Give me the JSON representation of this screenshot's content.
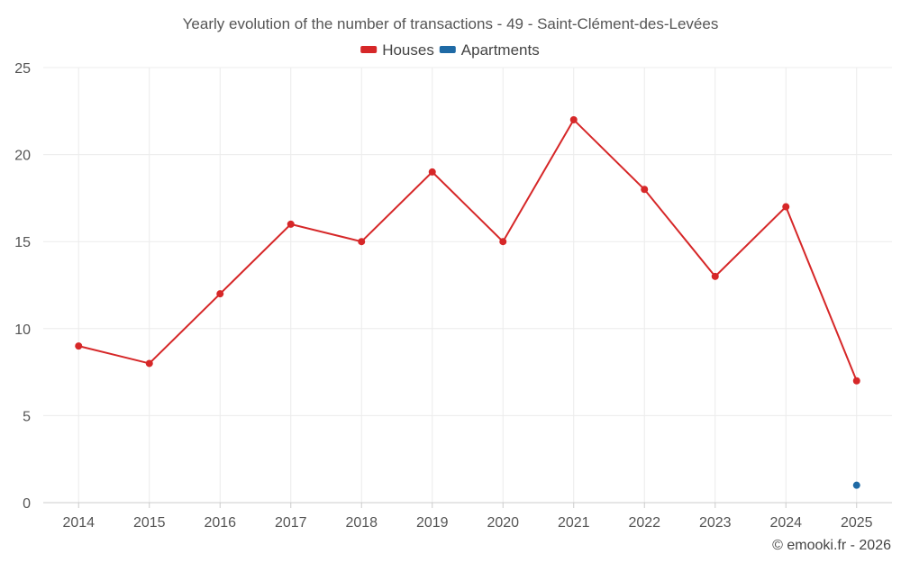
{
  "chart_data": {
    "type": "line",
    "title": "Yearly evolution of the number of transactions - 49 - Saint-Clément-des-Levées",
    "categories": [
      "2014",
      "2015",
      "2016",
      "2017",
      "2018",
      "2019",
      "2020",
      "2021",
      "2022",
      "2023",
      "2024",
      "2025"
    ],
    "series": [
      {
        "name": "Houses",
        "color": "#d62728",
        "values": [
          9,
          8,
          12,
          16,
          15,
          19,
          15,
          22,
          18,
          13,
          17,
          7
        ]
      },
      {
        "name": "Apartments",
        "color": "#1f6aa5",
        "values": [
          null,
          null,
          null,
          null,
          null,
          null,
          null,
          null,
          null,
          null,
          null,
          1
        ]
      }
    ],
    "ylim": [
      0,
      25
    ],
    "yticks": [
      0,
      5,
      10,
      15,
      20,
      25
    ],
    "xlabel": "",
    "ylabel": "",
    "grid": true,
    "legend": "top-center"
  },
  "footer": "© emooki.fr - 2026"
}
